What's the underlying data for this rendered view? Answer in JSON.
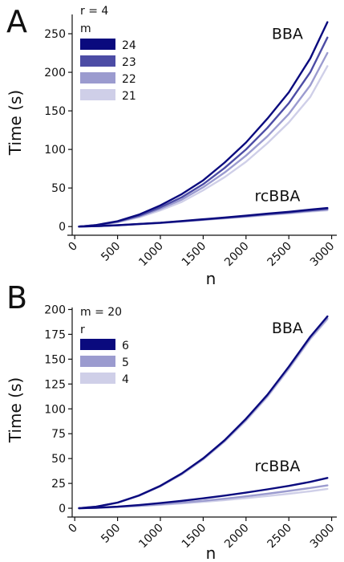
{
  "chart_data": [
    {
      "panel_label": "A",
      "type": "line",
      "xlabel": "n",
      "ylabel": "Time (s)",
      "xlim": [
        -30,
        3060
      ],
      "ylim": [
        -5,
        275
      ],
      "x_ticks": [
        {
          "v": 0,
          "label": "0"
        },
        {
          "v": 500,
          "label": "500"
        },
        {
          "v": 1000,
          "label": "1000"
        },
        {
          "v": 1500,
          "label": "1500"
        },
        {
          "v": 2000,
          "label": "2000"
        },
        {
          "v": 2500,
          "label": "2500"
        },
        {
          "v": 3000,
          "label": "3000"
        }
      ],
      "y_ticks": [
        {
          "v": 0,
          "label": "0"
        },
        {
          "v": 50,
          "label": "50"
        },
        {
          "v": 100,
          "label": "100"
        },
        {
          "v": 150,
          "label": "150"
        },
        {
          "v": 200,
          "label": "200"
        },
        {
          "v": 250,
          "label": "250"
        }
      ],
      "legend": {
        "position": "top-left",
        "header": "r = 4",
        "title": "m",
        "entries": [
          {
            "label": "24",
            "color": "#0a0a7e"
          },
          {
            "label": "23",
            "color": "#4c4ca5"
          },
          {
            "label": "22",
            "color": "#9b9bcf"
          },
          {
            "label": "21",
            "color": "#cfcfe8"
          }
        ]
      },
      "annotations": [
        {
          "text": "BBA",
          "x": 2300,
          "y": 243
        },
        {
          "text": "rcBBA",
          "x": 2100,
          "y": 33
        }
      ],
      "x": [
        50,
        250,
        500,
        750,
        1000,
        1250,
        1500,
        1750,
        2000,
        2250,
        2500,
        2750,
        2950
      ],
      "series": [
        {
          "group": "BBA",
          "legend_label": "21",
          "color": "#cfcfe8",
          "values": [
            0,
            1.5,
            5.5,
            12,
            21,
            32,
            47,
            64,
            84,
            108,
            135,
            168,
            208
          ]
        },
        {
          "group": "BBA",
          "legend_label": "22",
          "color": "#9b9bcf",
          "values": [
            0,
            1.6,
            6,
            13,
            23,
            35,
            51,
            70,
            92,
            117,
            146,
            183,
            225
          ]
        },
        {
          "group": "BBA",
          "legend_label": "23",
          "color": "#4c4ca5",
          "values": [
            0,
            1.8,
            6.5,
            14,
            25,
            38,
            55,
            76,
            100,
            128,
            160,
            200,
            245
          ]
        },
        {
          "group": "BBA",
          "legend_label": "24",
          "color": "#0a0a7e",
          "values": [
            0,
            2,
            7,
            15.5,
            27.5,
            42,
            60,
            83,
            109,
            140,
            174,
            218,
            265
          ]
        },
        {
          "group": "rcBBA",
          "legend_label": "21",
          "color": "#cfcfe8",
          "values": [
            0,
            0.5,
            1.5,
            3,
            4.5,
            6.5,
            8.5,
            10.5,
            12.5,
            15,
            17,
            19.5,
            21
          ]
        },
        {
          "group": "rcBBA",
          "legend_label": "22",
          "color": "#9b9bcf",
          "values": [
            0,
            0.5,
            1.6,
            3.1,
            4.7,
            6.7,
            8.8,
            10.9,
            13,
            15.5,
            17.7,
            20.2,
            22
          ]
        },
        {
          "group": "rcBBA",
          "legend_label": "23",
          "color": "#4c4ca5",
          "values": [
            0,
            0.5,
            1.7,
            3.2,
            4.8,
            6.9,
            9.1,
            11.3,
            13.6,
            16.1,
            18.4,
            21,
            23
          ]
        },
        {
          "group": "rcBBA",
          "legend_label": "24",
          "color": "#0a0a7e",
          "values": [
            0,
            0.6,
            1.8,
            3.4,
            5,
            7.2,
            9.5,
            11.8,
            14.2,
            16.8,
            19.2,
            22,
            24
          ]
        }
      ]
    },
    {
      "panel_label": "B",
      "type": "line",
      "xlabel": "n",
      "ylabel": "Time (s)",
      "xlim": [
        -30,
        3060
      ],
      "ylim": [
        -4,
        202
      ],
      "x_ticks": [
        {
          "v": 0,
          "label": "0"
        },
        {
          "v": 500,
          "label": "500"
        },
        {
          "v": 1000,
          "label": "1000"
        },
        {
          "v": 1500,
          "label": "1500"
        },
        {
          "v": 2000,
          "label": "2000"
        },
        {
          "v": 2500,
          "label": "2500"
        },
        {
          "v": 3000,
          "label": "3000"
        }
      ],
      "y_ticks": [
        {
          "v": 0,
          "label": "0"
        },
        {
          "v": 25,
          "label": "25"
        },
        {
          "v": 50,
          "label": "50"
        },
        {
          "v": 75,
          "label": "75"
        },
        {
          "v": 100,
          "label": "100"
        },
        {
          "v": 125,
          "label": "125"
        },
        {
          "v": 150,
          "label": "150"
        },
        {
          "v": 175,
          "label": "175"
        },
        {
          "v": 200,
          "label": "200"
        }
      ],
      "legend": {
        "position": "top-left",
        "header": "m = 20",
        "title": "r",
        "entries": [
          {
            "label": "6",
            "color": "#0a0a7e"
          },
          {
            "label": "5",
            "color": "#9b9bcf"
          },
          {
            "label": "4",
            "color": "#cfcfe8"
          }
        ]
      },
      "annotations": [
        {
          "text": "BBA",
          "x": 2300,
          "y": 176
        },
        {
          "text": "rcBBA",
          "x": 2100,
          "y": 37
        }
      ],
      "x": [
        50,
        250,
        500,
        750,
        1000,
        1250,
        1500,
        1750,
        2000,
        2250,
        2500,
        2750,
        2950
      ],
      "series": [
        {
          "group": "BBA",
          "legend_label": "4",
          "color": "#cfcfe8",
          "values": [
            0,
            1.5,
            5.5,
            12.5,
            22,
            34,
            49,
            67,
            88,
            112,
            140,
            170,
            190
          ]
        },
        {
          "group": "BBA",
          "legend_label": "5",
          "color": "#9b9bcf",
          "values": [
            0,
            1.5,
            5.6,
            12.7,
            22.3,
            34.5,
            49.6,
            67.7,
            89,
            113,
            141,
            171,
            191
          ]
        },
        {
          "group": "BBA",
          "legend_label": "6",
          "color": "#0a0a7e",
          "values": [
            0,
            1.6,
            5.7,
            12.9,
            22.6,
            35,
            50.2,
            68.5,
            90,
            114.2,
            142.5,
            172.5,
            193
          ]
        },
        {
          "group": "rcBBA",
          "legend_label": "4",
          "color": "#cfcfe8",
          "values": [
            0,
            0.4,
            1.2,
            2.2,
            3.4,
            4.8,
            6.4,
            8.2,
            10.2,
            12.3,
            14.6,
            17.1,
            19.5
          ]
        },
        {
          "group": "rcBBA",
          "legend_label": "5",
          "color": "#9b9bcf",
          "values": [
            0,
            0.4,
            1.3,
            2.5,
            3.9,
            5.6,
            7.5,
            9.6,
            12,
            14.6,
            17.4,
            20.4,
            23
          ]
        },
        {
          "group": "rcBBA",
          "legend_label": "6",
          "color": "#0a0a7e",
          "values": [
            0,
            0.5,
            1.6,
            3.2,
            5.2,
            7.5,
            10,
            12.7,
            15.7,
            19,
            22.5,
            26.5,
            30.5
          ]
        }
      ]
    }
  ]
}
